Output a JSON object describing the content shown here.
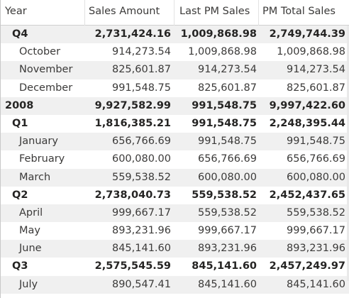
{
  "headers": {
    "col0": "Year",
    "col1": "Sales Amount",
    "col2": "Last PM Sales",
    "col3": "PM Total Sales"
  },
  "rows": [
    {
      "label": "Q4",
      "level": 1,
      "bold": true,
      "stripe": true,
      "sales": "2,731,424.16",
      "last": "1,009,868.98",
      "total": "2,749,744.39"
    },
    {
      "label": "October",
      "level": 2,
      "bold": false,
      "stripe": false,
      "sales": "914,273.54",
      "last": "1,009,868.98",
      "total": "1,009,868.98"
    },
    {
      "label": "November",
      "level": 2,
      "bold": false,
      "stripe": true,
      "sales": "825,601.87",
      "last": "914,273.54",
      "total": "914,273.54"
    },
    {
      "label": "December",
      "level": 2,
      "bold": false,
      "stripe": false,
      "sales": "991,548.75",
      "last": "825,601.87",
      "total": "825,601.87"
    },
    {
      "label": "2008",
      "level": 0,
      "bold": true,
      "stripe": true,
      "sales": "9,927,582.99",
      "last": "991,548.75",
      "total": "9,997,422.60"
    },
    {
      "label": "Q1",
      "level": 1,
      "bold": true,
      "stripe": false,
      "sales": "1,816,385.21",
      "last": "991,548.75",
      "total": "2,248,395.44"
    },
    {
      "label": "January",
      "level": 2,
      "bold": false,
      "stripe": true,
      "sales": "656,766.69",
      "last": "991,548.75",
      "total": "991,548.75"
    },
    {
      "label": "February",
      "level": 2,
      "bold": false,
      "stripe": false,
      "sales": "600,080.00",
      "last": "656,766.69",
      "total": "656,766.69"
    },
    {
      "label": "March",
      "level": 2,
      "bold": false,
      "stripe": true,
      "sales": "559,538.52",
      "last": "600,080.00",
      "total": "600,080.00"
    },
    {
      "label": "Q2",
      "level": 1,
      "bold": true,
      "stripe": false,
      "sales": "2,738,040.73",
      "last": "559,538.52",
      "total": "2,452,437.65"
    },
    {
      "label": "April",
      "level": 2,
      "bold": false,
      "stripe": true,
      "sales": "999,667.17",
      "last": "559,538.52",
      "total": "559,538.52"
    },
    {
      "label": "May",
      "level": 2,
      "bold": false,
      "stripe": false,
      "sales": "893,231.96",
      "last": "999,667.17",
      "total": "999,667.17"
    },
    {
      "label": "June",
      "level": 2,
      "bold": false,
      "stripe": true,
      "sales": "845,141.60",
      "last": "893,231.96",
      "total": "893,231.96"
    },
    {
      "label": "Q3",
      "level": 1,
      "bold": true,
      "stripe": false,
      "sales": "2,575,545.59",
      "last": "845,141.60",
      "total": "2,457,249.97"
    },
    {
      "label": "July",
      "level": 2,
      "bold": false,
      "stripe": true,
      "sales": "890,547.41",
      "last": "845,141.60",
      "total": "845,141.60"
    }
  ],
  "colors": {
    "stripe": "#f0f0f0",
    "text": "#252423",
    "header_text": "#3b3a39",
    "border": "#c8c8c8"
  }
}
